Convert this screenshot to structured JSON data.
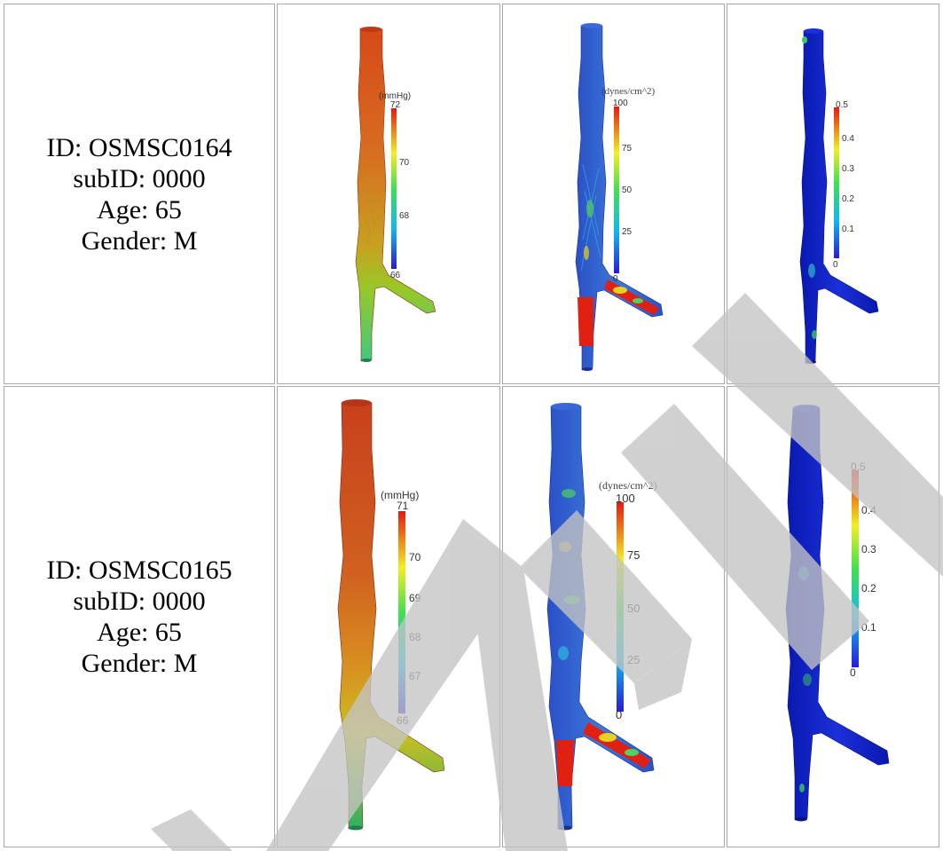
{
  "rows": [
    {
      "info": {
        "id": "ID: OSMSC0164",
        "subid": "subID: 0000",
        "age": "Age: 65",
        "gender": "Gender: M"
      },
      "pressure": {
        "unit": "(mmHg)",
        "ticks": [
          "72",
          "70",
          "68",
          "66"
        ]
      },
      "wss": {
        "unit": "(dynes/cm^2)",
        "ticks": [
          "100",
          "75",
          "50",
          "25",
          "0"
        ]
      },
      "osi": {
        "ticks": [
          "0.5",
          "0.4",
          "0.3",
          "0.2",
          "0.1",
          "0"
        ]
      }
    },
    {
      "info": {
        "id": "ID: OSMSC0165",
        "subid": "subID: 0000",
        "age": "Age: 65",
        "gender": "Gender: M"
      },
      "pressure": {
        "unit": "(mmHg)",
        "ticks": [
          "71",
          "70",
          "69",
          "68",
          "67",
          "66"
        ]
      },
      "wss": {
        "unit": "(dynes/cm^2)",
        "ticks": [
          "100",
          "75",
          "50",
          "25",
          "0"
        ]
      },
      "osi": {
        "ticks": [
          "0.5",
          "0.4",
          "0.3",
          "0.2",
          "0.1",
          "0"
        ]
      }
    }
  ],
  "colors": {
    "border": "#a8a8a8",
    "watermark": "#c8c8c8",
    "vessel_red": "#d8401c",
    "vessel_blue": "#1428d0",
    "vessel_green": "#3cc850"
  },
  "watermark_text": "SAMPLE"
}
